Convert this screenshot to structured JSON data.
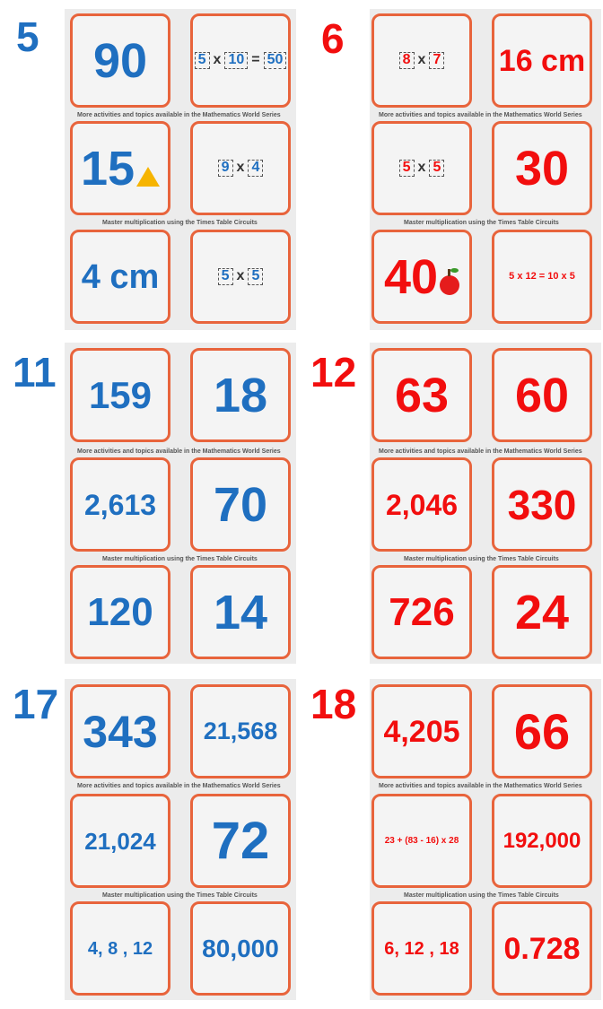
{
  "colors": {
    "blue": "#1f6fc0",
    "red": "#f20e0e",
    "card_border": "#e8643c"
  },
  "panels": [
    {
      "mascot": "5",
      "captions": [
        "More activities and topics available in the Mathematics World Series",
        "Master multiplication using the Times Table Circuits"
      ],
      "cards": {
        "c1": "90",
        "c2": {
          "a": "5",
          "op": "x",
          "b": "10",
          "eq": "=",
          "r": "50"
        },
        "c3": "15",
        "c4": {
          "a": "9",
          "op": "x",
          "b": "4"
        },
        "c5": "4 cm",
        "c6": {
          "a": "5",
          "op": "x",
          "b": "5"
        }
      }
    },
    {
      "mascot": "6",
      "captions": [
        "More activities and topics available in the Mathematics World Series",
        "Master multiplication using the Times Table Circuits"
      ],
      "cards": {
        "c1": {
          "a": "8",
          "op": "x",
          "b": "7"
        },
        "c2": "16 cm",
        "c3": {
          "a": "5",
          "op": "x",
          "b": "5"
        },
        "c4": "30",
        "c5": "40",
        "c6": "5 x 12 = 10 x 5"
      }
    },
    {
      "mascot": "11",
      "captions": [
        "More activities and topics available in the Mathematics World Series",
        "Master multiplication using the Times Table Circuits"
      ],
      "cards": {
        "c1": "159",
        "c2": "18",
        "c3": "2,613",
        "c4": "70",
        "c5": "120",
        "c6": "14"
      }
    },
    {
      "mascot": "12",
      "captions": [
        "More activities and topics available in the Mathematics World Series",
        "Master multiplication using the Times Table Circuits"
      ],
      "cards": {
        "c1": "63",
        "c2": "60",
        "c3": "2,046",
        "c4": "330",
        "c5": "726",
        "c6": "24"
      }
    },
    {
      "mascot": "17",
      "captions": [
        "More activities and topics available in the Mathematics World Series",
        "Master multiplication using the Times Table Circuits"
      ],
      "cards": {
        "c1": "343",
        "c2": "21,568",
        "c3": "21,024",
        "c4": "72",
        "c5": "4, 8 , 12",
        "c6": "80,000"
      }
    },
    {
      "mascot": "18",
      "captions": [
        "More activities and topics available in the Mathematics World Series",
        "Master multiplication using the Times Table Circuits"
      ],
      "cards": {
        "c1": "4,205",
        "c2": "66",
        "c3": "23 + (83 - 16) x 28",
        "c4": "192,000",
        "c5": "6, 12 , 18",
        "c6": "0.728"
      }
    }
  ]
}
